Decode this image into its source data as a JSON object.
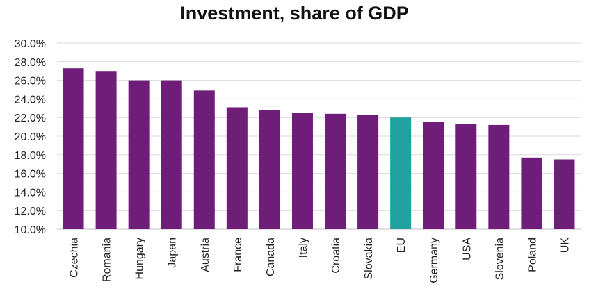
{
  "chart_data": {
    "type": "bar",
    "title": "Investment, share of GDP",
    "xlabel": "",
    "ylabel": "",
    "categories": [
      "Czechia",
      "Romania",
      "Hungary",
      "Japan",
      "Austria",
      "France",
      "Canada",
      "Italy",
      "Croatia",
      "Slovakia",
      "EU",
      "Germany",
      "USA",
      "Slovenia",
      "Poland",
      "UK"
    ],
    "values": [
      27.3,
      27.0,
      26.0,
      26.0,
      24.9,
      23.1,
      22.8,
      22.5,
      22.4,
      22.3,
      22.0,
      21.5,
      21.3,
      21.2,
      17.7,
      17.5
    ],
    "ylim": [
      10.0,
      30.0
    ],
    "yticks": [
      "10.0%",
      "12.0%",
      "14.0%",
      "16.0%",
      "18.0%",
      "20.0%",
      "22.0%",
      "24.0%",
      "26.0%",
      "28.0%",
      "30.0%"
    ],
    "grid": true,
    "colors": {
      "default_bar": "#6E1E78",
      "highlight_bar": "#21A0A0",
      "highlight_category": "EU"
    }
  }
}
